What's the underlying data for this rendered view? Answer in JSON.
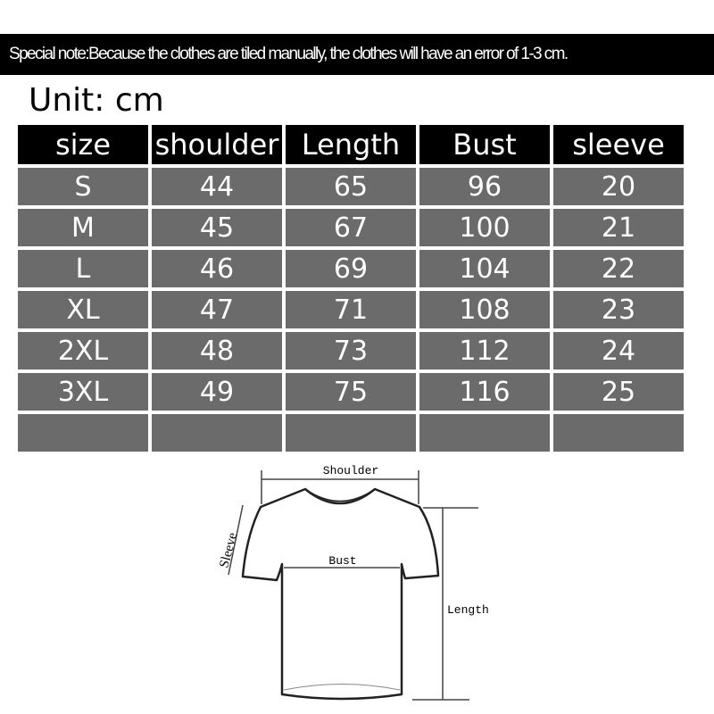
{
  "note": "Special note:Because the clothes are tiled manually, the clothes will have an error of 1-3 cm.",
  "unit": "Unit: cm",
  "table": {
    "headers": [
      "size",
      "shoulder",
      "Length",
      "Bust",
      "sleeve"
    ],
    "rows": [
      [
        "S",
        "44",
        "65",
        "96",
        "20"
      ],
      [
        "M",
        "45",
        "67",
        "100",
        "21"
      ],
      [
        "L",
        "46",
        "69",
        "104",
        "22"
      ],
      [
        "XL",
        "47",
        "71",
        "108",
        "23"
      ],
      [
        "2XL",
        "48",
        "73",
        "112",
        "24"
      ],
      [
        "3XL",
        "49",
        "75",
        "116",
        "25"
      ],
      [
        "",
        "",
        "",
        "",
        ""
      ]
    ]
  },
  "diagram": {
    "shoulder": "Shoulder",
    "bust": "Bust",
    "length": "Length",
    "sleeve": "Sleeve"
  }
}
